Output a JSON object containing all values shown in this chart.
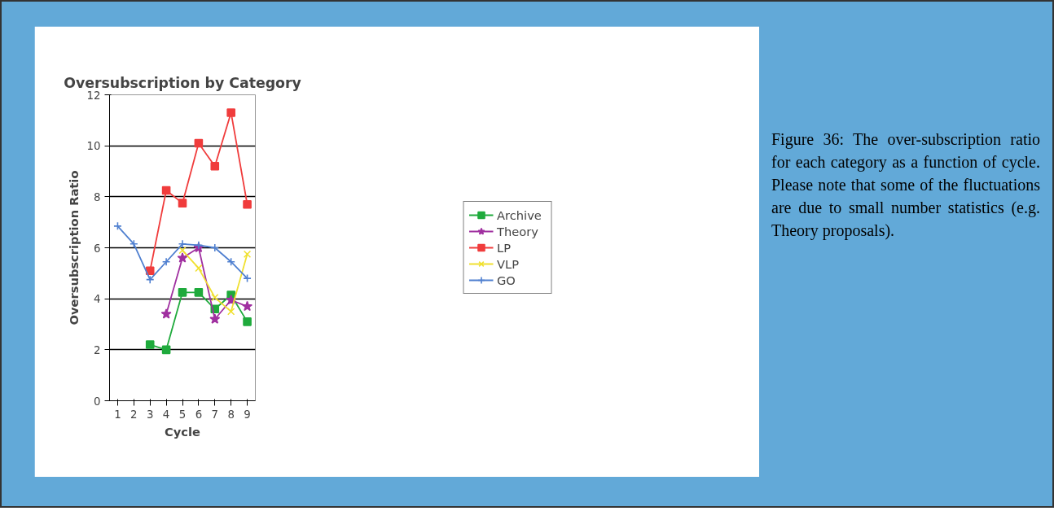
{
  "chart_data": {
    "type": "line",
    "title": "Oversubscription by Category",
    "xlabel": "Cycle",
    "ylabel": "Oversubscription Ratio",
    "x": [
      1,
      2,
      3,
      4,
      5,
      6,
      7,
      8,
      9
    ],
    "xlim": [
      0.5,
      9.5
    ],
    "xticks": [
      1,
      2,
      3,
      4,
      5,
      6,
      7,
      8,
      9
    ],
    "ylim": [
      0,
      12
    ],
    "yticks": [
      0,
      2,
      4,
      6,
      8,
      10,
      12
    ],
    "grid": "y",
    "legend": "right",
    "series": [
      {
        "name": "Archive",
        "color": "#1faa3c",
        "marker": "square",
        "values": [
          null,
          null,
          2.2,
          2.0,
          4.25,
          4.25,
          3.6,
          4.15,
          3.1
        ]
      },
      {
        "name": "Theory",
        "color": "#a030a0",
        "marker": "star",
        "values": [
          null,
          null,
          null,
          3.4,
          5.6,
          6.0,
          3.2,
          3.95,
          3.7
        ]
      },
      {
        "name": "LP",
        "color": "#f03c3c",
        "marker": "square",
        "values": [
          null,
          null,
          5.1,
          8.25,
          7.75,
          10.1,
          9.2,
          11.3,
          7.7
        ]
      },
      {
        "name": "VLP",
        "color": "#f0e030",
        "marker": "x",
        "values": [
          null,
          null,
          null,
          null,
          5.9,
          5.2,
          4.05,
          3.5,
          5.75
        ]
      },
      {
        "name": "GO",
        "color": "#5080d0",
        "marker": "cross",
        "values": [
          6.85,
          6.15,
          4.75,
          5.45,
          6.15,
          6.1,
          6.0,
          5.45,
          4.8
        ]
      }
    ],
    "annotations": [
      "Figure 36: The over-subscription ratio for each category as a function of cycle. Please note that some of the fluctuations are due to small number statistics (e.g. Theory proposals)."
    ]
  }
}
